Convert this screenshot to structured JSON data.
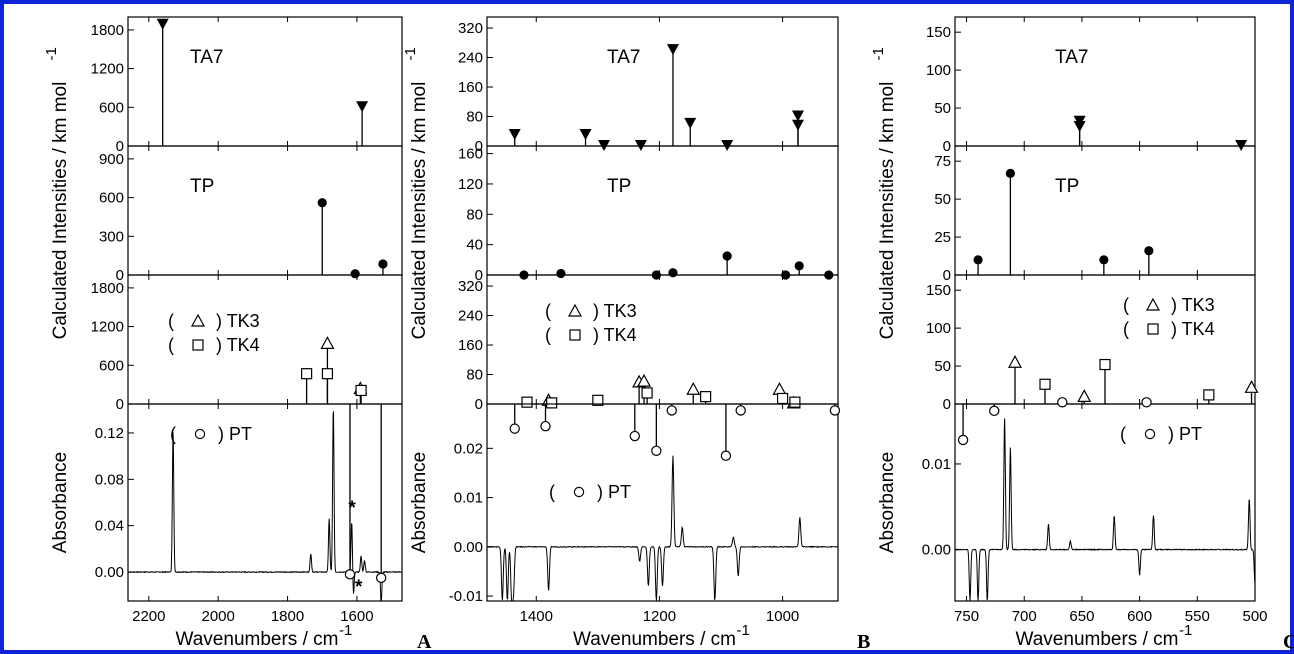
{
  "border_color": "#0f24d6",
  "ylabel_ir": "Calculated Intensities / km mol",
  "ylabel_ir_sup": "-1",
  "xlabel": "Wavenumbers / cm",
  "xlabel_sup": "-1",
  "panel_letters": [
    "A",
    "B",
    "C"
  ],
  "chart_data": [
    {
      "panel": "A",
      "type": "line",
      "x_range": [
        2260,
        1470
      ],
      "x_ticks": [
        2200,
        2000,
        1800,
        1600
      ],
      "subplots": [
        {
          "type": "stem",
          "series": "TA7",
          "marker": "filled-triangle-down",
          "ylim": [
            0,
            2000
          ],
          "y_ticks": [
            0,
            600,
            1200,
            1800
          ],
          "points": [
            [
              2160,
              1880
            ],
            [
              1585,
              600
            ]
          ]
        },
        {
          "type": "stem",
          "series": "TP",
          "marker": "filled-circle",
          "ylim": [
            0,
            1000
          ],
          "y_ticks": [
            0,
            300,
            600,
            900
          ],
          "points": [
            [
              1700,
              560
            ],
            [
              1605,
              10
            ],
            [
              1525,
              85
            ]
          ]
        },
        {
          "type": "stem",
          "legend": [
            "TK3",
            "TK4"
          ],
          "ylim": [
            0,
            2000
          ],
          "y_ticks": [
            0,
            600,
            1200,
            1800
          ],
          "series_data": [
            {
              "name": "TK3",
              "marker": "open-triangle",
              "points": [
                [
                  1685,
                  940
                ],
                [
                  1590,
                  240
                ]
              ]
            },
            {
              "name": "TK4",
              "marker": "open-square",
              "points": [
                [
                  1745,
                  470
                ],
                [
                  1685,
                  470
                ],
                [
                  1588,
                  210
                ]
              ]
            }
          ]
        },
        {
          "type": "spectrum",
          "legend": [
            "PT"
          ],
          "ylabel": "Absorbance",
          "ylim": [
            -0.025,
            0.145
          ],
          "y_ticks": [
            "0.00",
            "0.04",
            "0.08",
            "0.12"
          ],
          "baseline": 0,
          "peaks": [
            [
              2130,
              0.122
            ],
            [
              1733,
              0.016
            ],
            [
              1680,
              0.046
            ],
            [
              1668,
              0.143
            ],
            [
              1615,
              0.044
            ],
            [
              1588,
              0.014
            ],
            [
              1578,
              0.01
            ]
          ],
          "dips": [
            [
              1610,
              -0.02
            ],
            [
              1530,
              -0.028
            ]
          ],
          "pt_markers": [
            [
              1620,
              -0.002
            ],
            [
              1530,
              -0.005
            ]
          ],
          "annotations": [
            {
              "text": "*",
              "x": 1614,
              "y": 0.05
            },
            {
              "text": "*",
              "x": 1595,
              "y": -0.018
            }
          ]
        }
      ]
    },
    {
      "panel": "B",
      "type": "line",
      "x_range": [
        1480,
        910
      ],
      "x_ticks": [
        1400,
        1200,
        1000
      ],
      "subplots": [
        {
          "type": "stem",
          "series": "TA7",
          "marker": "filled-triangle-down",
          "ylim": [
            0,
            350
          ],
          "y_ticks": [
            0,
            80,
            160,
            240,
            320
          ],
          "points": [
            [
              1435,
              30
            ],
            [
              1320,
              30
            ],
            [
              1290,
              0
            ],
            [
              1230,
              0
            ],
            [
              1178,
              260
            ],
            [
              1150,
              60
            ],
            [
              1090,
              0
            ],
            [
              975,
              80
            ],
            [
              975,
              55
            ]
          ]
        },
        {
          "type": "stem",
          "series": "TP",
          "marker": "filled-circle",
          "ylim": [
            0,
            170
          ],
          "y_ticks": [
            0,
            40,
            80,
            120,
            160
          ],
          "points": [
            [
              1420,
              0
            ],
            [
              1360,
              2
            ],
            [
              1205,
              0
            ],
            [
              1178,
              3
            ],
            [
              1090,
              25
            ],
            [
              995,
              0
            ],
            [
              973,
              12
            ],
            [
              925,
              0
            ]
          ]
        },
        {
          "type": "stem",
          "legend": [
            "TK3",
            "TK4"
          ],
          "ylim": [
            0,
            350
          ],
          "y_ticks": [
            0,
            80,
            160,
            240,
            320
          ],
          "series_data": [
            {
              "name": "TK3",
              "marker": "open-triangle",
              "points": [
                [
                  1380,
                  10
                ],
                [
                  1233,
                  60
                ],
                [
                  1225,
                  62
                ],
                [
                  1145,
                  40
                ],
                [
                  1005,
                  40
                ],
                [
                  982,
                  3
                ]
              ]
            },
            {
              "name": "TK4",
              "marker": "open-square",
              "points": [
                [
                  1415,
                  5
                ],
                [
                  1375,
                  3
                ],
                [
                  1300,
                  10
                ],
                [
                  1220,
                  30
                ],
                [
                  1125,
                  20
                ],
                [
                  1000,
                  15
                ],
                [
                  980,
                  5
                ]
              ]
            }
          ]
        },
        {
          "type": "spectrum",
          "legend": [
            "PT"
          ],
          "ylabel": "Absorbance",
          "ylim": [
            -0.011,
            0.029
          ],
          "y_ticks": [
            "-0.01",
            "0.00",
            "0.01",
            "0.02"
          ],
          "baseline": 0,
          "peaks": [
            [
              1232,
              0.008
            ],
            [
              1178,
              0.0185
            ],
            [
              1163,
              0.004
            ],
            [
              1080,
              0.002
            ],
            [
              972,
              0.006
            ]
          ],
          "dips": [
            [
              1455,
              -0.011
            ],
            [
              1447,
              -0.011
            ],
            [
              1440,
              -0.011
            ],
            [
              1437,
              -0.009
            ],
            [
              1380,
              -0.009
            ],
            [
              1232,
              -0.011
            ],
            [
              1218,
              -0.008
            ],
            [
              1205,
              -0.011
            ],
            [
              1195,
              -0.008
            ],
            [
              1110,
              -0.011
            ],
            [
              1072,
              -0.006
            ]
          ],
          "pt_markers": [
            [
              1435,
              0.024
            ],
            [
              1385,
              0.0245
            ],
            [
              1240,
              0.0225
            ],
            [
              1205,
              0.0195
            ],
            [
              1180,
              0.0277
            ],
            [
              1092,
              0.0185
            ],
            [
              1068,
              0.0277
            ],
            [
              915,
              0.0277
            ]
          ]
        }
      ]
    },
    {
      "panel": "C",
      "type": "line",
      "x_range": [
        760,
        500
      ],
      "x_ticks": [
        750,
        700,
        650,
        600,
        550,
        500
      ],
      "subplots": [
        {
          "type": "stem",
          "series": "TA7",
          "marker": "filled-triangle-down",
          "ylim": [
            0,
            170
          ],
          "y_ticks": [
            0,
            50,
            100,
            150
          ],
          "points": [
            [
              652,
              32
            ],
            [
              652,
              25
            ],
            [
              512,
              0
            ]
          ]
        },
        {
          "type": "stem",
          "series": "TP",
          "marker": "filled-circle",
          "ylim": [
            0,
            85
          ],
          "y_ticks": [
            0,
            25,
            50,
            75
          ],
          "points": [
            [
              740,
              10
            ],
            [
              712,
              67
            ],
            [
              631,
              10
            ],
            [
              592,
              16
            ]
          ]
        },
        {
          "type": "stem",
          "legend": [
            "TK3",
            "TK4"
          ],
          "ylim": [
            0,
            170
          ],
          "y_ticks": [
            0,
            50,
            100,
            150
          ],
          "series_data": [
            {
              "name": "TK3",
              "marker": "open-triangle",
              "points": [
                [
                  708,
                  55
                ],
                [
                  648,
                  10
                ],
                [
                  503,
                  22
                ]
              ]
            },
            {
              "name": "TK4",
              "marker": "open-square",
              "points": [
                [
                  682,
                  26
                ],
                [
                  630,
                  52
                ],
                [
                  540,
                  12
                ]
              ]
            }
          ]
        },
        {
          "type": "spectrum",
          "legend": [
            "PT"
          ],
          "ylabel": "Absorbance",
          "ylim": [
            -0.006,
            0.017
          ],
          "y_ticks": [
            "0.00",
            "0.01"
          ],
          "baseline": 0,
          "peaks": [
            [
              717,
              0.0155
            ],
            [
              712,
              0.012
            ],
            [
              679,
              0.003
            ],
            [
              622,
              0.004
            ],
            [
              588,
              0.004
            ],
            [
              505,
              0.006
            ],
            [
              660,
              0.001
            ]
          ],
          "dips": [
            [
              747,
              -0.006
            ],
            [
              740,
              -0.006
            ],
            [
              732,
              -0.006
            ],
            [
              600,
              -0.003
            ],
            [
              500,
              -0.004
            ]
          ],
          "pt_markers": [
            [
              753,
              0.0128
            ],
            [
              726,
              0.0162
            ],
            [
              667,
              0.0172
            ],
            [
              594,
              0.0172
            ]
          ]
        }
      ]
    }
  ]
}
